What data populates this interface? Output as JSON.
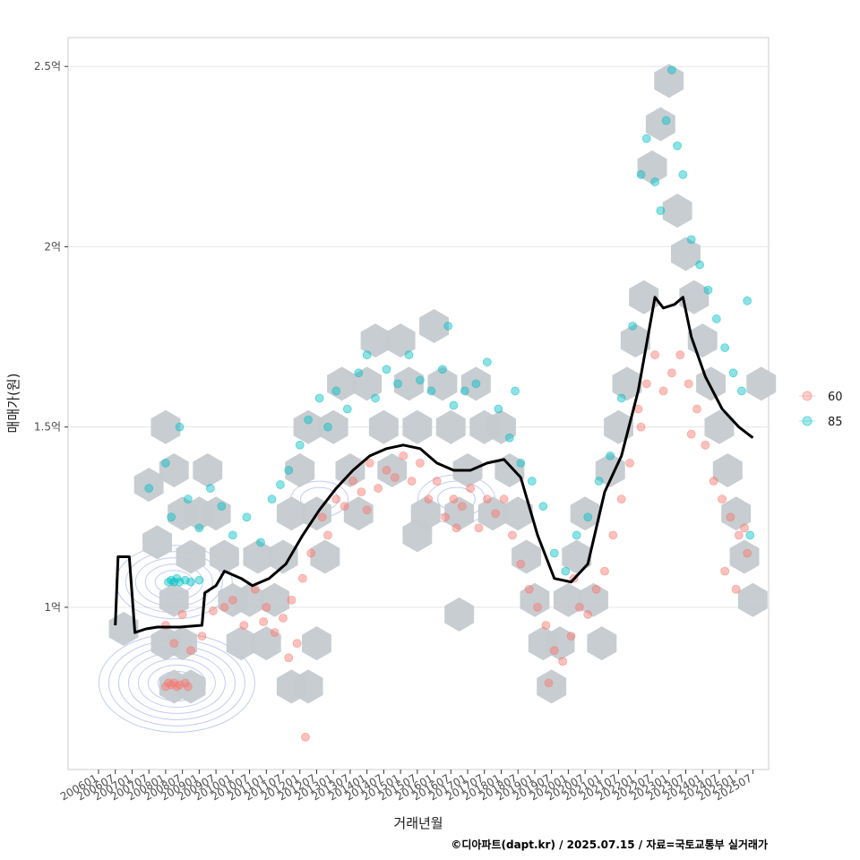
{
  "chart_data": {
    "type": "scatter",
    "xlabel": "거래년월",
    "ylabel": "매매가(원)",
    "caption": "©디아파트(dapt.kr) / 2025.07.15 / 자료=국토교통부 실거래가",
    "x_range": [
      "2006-01",
      "2025-12"
    ],
    "ylim": [
      0.55,
      2.58
    ],
    "y_unit": "억",
    "y_ticks": [
      {
        "value": 1.0,
        "label": "1억"
      },
      {
        "value": 1.5,
        "label": "1.5억"
      },
      {
        "value": 2.0,
        "label": "2억"
      },
      {
        "value": 2.5,
        "label": "2.5억"
      }
    ],
    "x_tick_labels": [
      "200601",
      "200607",
      "200701",
      "200707",
      "200801",
      "200807",
      "200901",
      "200907",
      "201001",
      "201007",
      "201101",
      "201107",
      "201201",
      "201207",
      "201301",
      "201307",
      "201401",
      "201407",
      "201501",
      "201507",
      "201601",
      "201607",
      "201701",
      "201707",
      "201801",
      "201807",
      "201901",
      "201907",
      "202001",
      "202007",
      "202101",
      "202107",
      "202201",
      "202207",
      "202301",
      "202307",
      "202401",
      "202407",
      "202501",
      "202507"
    ],
    "grid": true,
    "legend_position": "right",
    "colors": {
      "s60": "#f8766d",
      "s85": "#00bfc4",
      "hex": "#c5cacf",
      "trend": "#000000",
      "density": "#8fa0ee",
      "grid": "#e6e6e6",
      "panel_border": "#cccccc"
    },
    "series": [
      {
        "name": "60",
        "color": "#f8766d",
        "points": [
          [
            "2008-01",
            0.78
          ],
          [
            "2008-02",
            0.79
          ],
          [
            "2008-03",
            0.785
          ],
          [
            "2008-04",
            0.79
          ],
          [
            "2008-05",
            0.78
          ],
          [
            "2008-06",
            0.785
          ],
          [
            "2008-08",
            0.79
          ],
          [
            "2008-09",
            0.78
          ],
          [
            "2008-01",
            0.95
          ],
          [
            "2008-04",
            0.9
          ],
          [
            "2008-07",
            0.98
          ],
          [
            "2008-10",
            0.88
          ],
          [
            "2009-02",
            0.92
          ],
          [
            "2009-06",
            0.99
          ],
          [
            "2009-10",
            1.0
          ],
          [
            "2010-01",
            1.02
          ],
          [
            "2010-05",
            0.95
          ],
          [
            "2010-09",
            1.05
          ],
          [
            "2011-01",
            1.0
          ],
          [
            "2011-04",
            0.93
          ],
          [
            "2011-07",
            0.97
          ],
          [
            "2011-10",
            1.02
          ],
          [
            "2011-12",
            0.9
          ],
          [
            "2012-02",
            1.08
          ],
          [
            "2012-05",
            1.15
          ],
          [
            "2012-09",
            1.25
          ],
          [
            "2012-11",
            1.2
          ],
          [
            "2013-02",
            1.3
          ],
          [
            "2013-05",
            1.28
          ],
          [
            "2013-08",
            1.35
          ],
          [
            "2013-11",
            1.32
          ],
          [
            "2014-02",
            1.4
          ],
          [
            "2014-05",
            1.33
          ],
          [
            "2014-08",
            1.38
          ],
          [
            "2014-11",
            1.36
          ],
          [
            "2015-02",
            1.42
          ],
          [
            "2015-05",
            1.35
          ],
          [
            "2015-08",
            1.4
          ],
          [
            "2015-11",
            1.3
          ],
          [
            "2016-02",
            1.35
          ],
          [
            "2016-05",
            1.25
          ],
          [
            "2016-08",
            1.3
          ],
          [
            "2016-11",
            1.28
          ],
          [
            "2017-02",
            1.33
          ],
          [
            "2017-05",
            1.22
          ],
          [
            "2017-08",
            1.3
          ],
          [
            "2017-11",
            1.26
          ],
          [
            "2018-02",
            1.3
          ],
          [
            "2018-05",
            1.2
          ],
          [
            "2018-08",
            1.12
          ],
          [
            "2018-11",
            1.05
          ],
          [
            "2019-02",
            1.0
          ],
          [
            "2019-05",
            0.95
          ],
          [
            "2019-08",
            0.88
          ],
          [
            "2019-11",
            0.85
          ],
          [
            "2020-02",
            0.92
          ],
          [
            "2020-05",
            1.0
          ],
          [
            "2020-08",
            0.98
          ],
          [
            "2020-11",
            1.05
          ],
          [
            "2021-02",
            1.1
          ],
          [
            "2021-05",
            1.2
          ],
          [
            "2021-08",
            1.3
          ],
          [
            "2021-11",
            1.4
          ],
          [
            "2022-02",
            1.55
          ],
          [
            "2022-05",
            1.62
          ],
          [
            "2022-08",
            1.7
          ],
          [
            "2022-11",
            1.6
          ],
          [
            "2023-02",
            1.65
          ],
          [
            "2023-05",
            1.7
          ],
          [
            "2023-08",
            1.62
          ],
          [
            "2023-11",
            1.55
          ],
          [
            "2024-02",
            1.45
          ],
          [
            "2024-05",
            1.35
          ],
          [
            "2024-08",
            1.3
          ],
          [
            "2024-11",
            1.25
          ],
          [
            "2025-02",
            1.2
          ],
          [
            "2025-05",
            1.15
          ],
          [
            "2012-03",
            0.64
          ],
          [
            "2010-12",
            0.96
          ],
          [
            "2011-09",
            0.86
          ],
          [
            "2014-01",
            1.27
          ],
          [
            "2016-09",
            1.22
          ],
          [
            "2019-06",
            0.79
          ],
          [
            "2020-03",
            1.08
          ],
          [
            "2022-03",
            1.5
          ],
          [
            "2023-09",
            1.48
          ],
          [
            "2024-09",
            1.1
          ],
          [
            "2025-01",
            1.05
          ],
          [
            "2025-04",
            1.22
          ]
        ]
      },
      {
        "name": "85",
        "color": "#00bfc4",
        "points": [
          [
            "2008-02",
            1.07
          ],
          [
            "2008-03",
            1.075
          ],
          [
            "2008-04",
            1.07
          ],
          [
            "2008-05",
            1.08
          ],
          [
            "2008-06",
            1.07
          ],
          [
            "2008-08",
            1.075
          ],
          [
            "2008-10",
            1.07
          ],
          [
            "2009-01",
            1.075
          ],
          [
            "2007-07",
            1.33
          ],
          [
            "2008-01",
            1.4
          ],
          [
            "2008-03",
            1.25
          ],
          [
            "2008-06",
            1.5
          ],
          [
            "2008-09",
            1.3
          ],
          [
            "2009-01",
            1.22
          ],
          [
            "2009-05",
            1.33
          ],
          [
            "2009-09",
            1.28
          ],
          [
            "2010-01",
            1.2
          ],
          [
            "2010-06",
            1.25
          ],
          [
            "2010-11",
            1.18
          ],
          [
            "2011-03",
            1.3
          ],
          [
            "2011-06",
            1.34
          ],
          [
            "2011-09",
            1.38
          ],
          [
            "2012-01",
            1.45
          ],
          [
            "2012-04",
            1.52
          ],
          [
            "2012-08",
            1.58
          ],
          [
            "2012-11",
            1.5
          ],
          [
            "2013-02",
            1.6
          ],
          [
            "2013-06",
            1.55
          ],
          [
            "2013-10",
            1.65
          ],
          [
            "2014-01",
            1.7
          ],
          [
            "2014-04",
            1.58
          ],
          [
            "2014-08",
            1.66
          ],
          [
            "2014-12",
            1.62
          ],
          [
            "2015-04",
            1.7
          ],
          [
            "2015-08",
            1.63
          ],
          [
            "2015-12",
            1.6
          ],
          [
            "2016-04",
            1.66
          ],
          [
            "2016-08",
            1.56
          ],
          [
            "2016-12",
            1.6
          ],
          [
            "2017-04",
            1.62
          ],
          [
            "2017-08",
            1.68
          ],
          [
            "2017-12",
            1.55
          ],
          [
            "2018-04",
            1.47
          ],
          [
            "2018-08",
            1.4
          ],
          [
            "2018-12",
            1.35
          ],
          [
            "2019-04",
            1.28
          ],
          [
            "2019-08",
            1.15
          ],
          [
            "2019-12",
            1.1
          ],
          [
            "2020-04",
            1.2
          ],
          [
            "2020-08",
            1.25
          ],
          [
            "2020-12",
            1.35
          ],
          [
            "2021-04",
            1.42
          ],
          [
            "2021-08",
            1.58
          ],
          [
            "2021-12",
            1.78
          ],
          [
            "2022-03",
            2.2
          ],
          [
            "2022-05",
            2.3
          ],
          [
            "2022-08",
            2.18
          ],
          [
            "2022-10",
            2.1
          ],
          [
            "2022-12",
            2.35
          ],
          [
            "2023-02",
            2.49
          ],
          [
            "2023-04",
            2.28
          ],
          [
            "2023-06",
            2.2
          ],
          [
            "2023-09",
            2.02
          ],
          [
            "2023-12",
            1.95
          ],
          [
            "2024-03",
            1.88
          ],
          [
            "2024-06",
            1.8
          ],
          [
            "2024-09",
            1.72
          ],
          [
            "2024-12",
            1.65
          ],
          [
            "2025-03",
            1.6
          ],
          [
            "2025-05",
            1.85
          ],
          [
            "2025-06",
            1.2
          ],
          [
            "2016-06",
            1.78
          ],
          [
            "2018-06",
            1.6
          ]
        ]
      }
    ],
    "trend_line": [
      [
        "2006-07",
        0.95
      ],
      [
        "2006-08",
        1.14
      ],
      [
        "2006-12",
        1.14
      ],
      [
        "2007-02",
        0.93
      ],
      [
        "2007-06",
        0.94
      ],
      [
        "2007-10",
        0.945
      ],
      [
        "2008-06",
        0.945
      ],
      [
        "2009-02",
        0.95
      ],
      [
        "2009-03",
        1.04
      ],
      [
        "2009-07",
        1.06
      ],
      [
        "2009-10",
        1.1
      ],
      [
        "2010-04",
        1.08
      ],
      [
        "2010-08",
        1.06
      ],
      [
        "2011-02",
        1.08
      ],
      [
        "2011-08",
        1.12
      ],
      [
        "2012-02",
        1.2
      ],
      [
        "2012-08",
        1.27
      ],
      [
        "2013-02",
        1.33
      ],
      [
        "2013-08",
        1.38
      ],
      [
        "2014-02",
        1.42
      ],
      [
        "2014-08",
        1.44
      ],
      [
        "2015-02",
        1.45
      ],
      [
        "2015-08",
        1.44
      ],
      [
        "2016-02",
        1.4
      ],
      [
        "2016-08",
        1.38
      ],
      [
        "2017-02",
        1.38
      ],
      [
        "2017-08",
        1.4
      ],
      [
        "2018-02",
        1.41
      ],
      [
        "2018-08",
        1.36
      ],
      [
        "2019-02",
        1.2
      ],
      [
        "2019-08",
        1.08
      ],
      [
        "2020-02",
        1.07
      ],
      [
        "2020-08",
        1.12
      ],
      [
        "2021-02",
        1.32
      ],
      [
        "2021-08",
        1.42
      ],
      [
        "2022-02",
        1.6
      ],
      [
        "2022-08",
        1.86
      ],
      [
        "2022-11",
        1.83
      ],
      [
        "2023-03",
        1.84
      ],
      [
        "2023-06",
        1.86
      ],
      [
        "2023-09",
        1.75
      ],
      [
        "2024-02",
        1.64
      ],
      [
        "2024-08",
        1.55
      ],
      [
        "2025-02",
        1.5
      ],
      [
        "2025-07",
        1.47
      ]
    ],
    "hex_bins": [
      [
        "2007-07",
        1.34
      ],
      [
        "2007-10",
        1.18
      ],
      [
        "2008-01",
        1.5
      ],
      [
        "2008-04",
        1.38
      ],
      [
        "2008-07",
        1.26
      ],
      [
        "2008-10",
        1.14
      ],
      [
        "2008-04",
        1.02
      ],
      [
        "2008-01",
        0.9
      ],
      [
        "2008-07",
        0.9
      ],
      [
        "2008-04",
        0.78
      ],
      [
        "2008-10",
        0.78
      ],
      [
        "2009-01",
        1.26
      ],
      [
        "2009-04",
        1.38
      ],
      [
        "2009-07",
        1.26
      ],
      [
        "2009-10",
        1.14
      ],
      [
        "2010-01",
        1.02
      ],
      [
        "2010-04",
        0.9
      ],
      [
        "2010-07",
        1.02
      ],
      [
        "2010-10",
        1.14
      ],
      [
        "2011-01",
        0.9
      ],
      [
        "2011-04",
        1.02
      ],
      [
        "2011-07",
        1.14
      ],
      [
        "2011-10",
        1.26
      ],
      [
        "2012-01",
        1.38
      ],
      [
        "2012-04",
        1.5
      ],
      [
        "2012-07",
        1.26
      ],
      [
        "2012-10",
        1.14
      ],
      [
        "2013-01",
        1.5
      ],
      [
        "2013-04",
        1.62
      ],
      [
        "2013-07",
        1.38
      ],
      [
        "2013-10",
        1.26
      ],
      [
        "2014-01",
        1.62
      ],
      [
        "2014-04",
        1.74
      ],
      [
        "2014-07",
        1.5
      ],
      [
        "2014-10",
        1.38
      ],
      [
        "2015-01",
        1.74
      ],
      [
        "2015-04",
        1.62
      ],
      [
        "2015-07",
        1.5
      ],
      [
        "2015-10",
        1.26
      ],
      [
        "2016-01",
        1.78
      ],
      [
        "2016-04",
        1.62
      ],
      [
        "2016-07",
        1.5
      ],
      [
        "2016-10",
        1.26
      ],
      [
        "2017-01",
        1.38
      ],
      [
        "2017-04",
        1.62
      ],
      [
        "2017-07",
        1.5
      ],
      [
        "2017-10",
        1.26
      ],
      [
        "2018-01",
        1.5
      ],
      [
        "2018-04",
        1.38
      ],
      [
        "2018-07",
        1.26
      ],
      [
        "2018-10",
        1.14
      ],
      [
        "2019-01",
        1.02
      ],
      [
        "2019-04",
        0.9
      ],
      [
        "2019-07",
        0.78
      ],
      [
        "2019-10",
        0.9
      ],
      [
        "2020-01",
        1.02
      ],
      [
        "2020-04",
        1.14
      ],
      [
        "2020-07",
        1.26
      ],
      [
        "2020-10",
        1.02
      ],
      [
        "2021-01",
        0.9
      ],
      [
        "2021-04",
        1.38
      ],
      [
        "2021-07",
        1.5
      ],
      [
        "2021-10",
        1.62
      ],
      [
        "2022-01",
        1.74
      ],
      [
        "2022-04",
        1.86
      ],
      [
        "2022-07",
        2.22
      ],
      [
        "2022-10",
        2.34
      ],
      [
        "2023-01",
        2.46
      ],
      [
        "2023-04",
        2.1
      ],
      [
        "2023-07",
        1.98
      ],
      [
        "2023-10",
        1.86
      ],
      [
        "2024-01",
        1.74
      ],
      [
        "2024-04",
        1.62
      ],
      [
        "2024-07",
        1.5
      ],
      [
        "2024-10",
        1.38
      ],
      [
        "2025-01",
        1.26
      ],
      [
        "2025-04",
        1.14
      ],
      [
        "2025-07",
        1.02
      ],
      [
        "2025-10",
        1.62
      ],
      [
        "2012-04",
        0.78
      ],
      [
        "2006-10",
        0.94
      ],
      [
        "2015-07",
        1.2
      ],
      [
        "2016-10",
        0.98
      ],
      [
        "2012-07",
        0.9
      ],
      [
        "2011-10",
        0.78
      ]
    ],
    "density_centers": [
      {
        "x": "2008-05",
        "y": 0.79,
        "rings": 7
      },
      {
        "x": "2008-04",
        "y": 1.07,
        "rings": 5
      },
      {
        "x": "2016-09",
        "y": 1.3,
        "rings": 3
      },
      {
        "x": "2012-08",
        "y": 1.3,
        "rings": 2
      }
    ]
  }
}
